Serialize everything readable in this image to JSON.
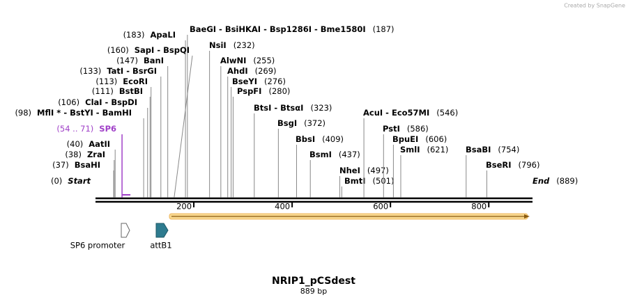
{
  "credit": "Created by SnapGene",
  "title": "NRIP1_pCSdest",
  "subtitle": "889 bp",
  "sequence_length": 889,
  "ticks": [
    200,
    400,
    600,
    800
  ],
  "sites": [
    {
      "label": "ApaLI",
      "position": "(183)"
    },
    {
      "label": "BaeGI  - BsiHKAI  - Bsp1286I  - Bme1580I",
      "position": "(187)"
    },
    {
      "label": "SapI  - BspQI",
      "position": "(160)"
    },
    {
      "label": "BanI",
      "position": "(147)"
    },
    {
      "label": "TatI  - BsrGI",
      "position": "(133)"
    },
    {
      "label": "EcoRI",
      "position": "(113)"
    },
    {
      "label": "BstBI",
      "position": "(111)"
    },
    {
      "label": "ClaI  - BspDI",
      "position": "(106)"
    },
    {
      "label": "MflI * - BstYI  - BamHI",
      "position": "(98)"
    },
    {
      "label": "SP6",
      "position": "(54 .. 71)",
      "color": "#a040c8"
    },
    {
      "label": "AatII",
      "position": "(40)"
    },
    {
      "label": "ZraI",
      "position": "(38)"
    },
    {
      "label": "BsaHI",
      "position": "(37)"
    },
    {
      "label": "Start",
      "position": "(0)"
    },
    {
      "label": "NsiI",
      "position": "(232)"
    },
    {
      "label": "AlwNI",
      "position": "(255)"
    },
    {
      "label": "AhdI",
      "position": "(269)"
    },
    {
      "label": "BseYI",
      "position": "(276)"
    },
    {
      "label": "PspFI",
      "position": "(280)"
    },
    {
      "label": "BtsI  - BtsαI",
      "position": "(323)"
    },
    {
      "label": "BsgI",
      "position": "(372)"
    },
    {
      "label": "BbsI",
      "position": "(409)"
    },
    {
      "label": "BsmI",
      "position": "(437)"
    },
    {
      "label": "NheI",
      "position": "(497)"
    },
    {
      "label": "BmtI",
      "position": "(501)"
    },
    {
      "label": "AcuI  - Eco57MI",
      "position": "(546)"
    },
    {
      "label": "PstI",
      "position": "(586)"
    },
    {
      "label": "BpuEI",
      "position": "(606)"
    },
    {
      "label": "SmlI",
      "position": "(621)"
    },
    {
      "label": "BsaBI",
      "position": "(754)"
    },
    {
      "label": "BseRI",
      "position": "(796)"
    },
    {
      "label": "End",
      "position": "(889)"
    }
  ],
  "features": [
    {
      "label": "SP6 promoter"
    },
    {
      "label": "attB1"
    }
  ]
}
